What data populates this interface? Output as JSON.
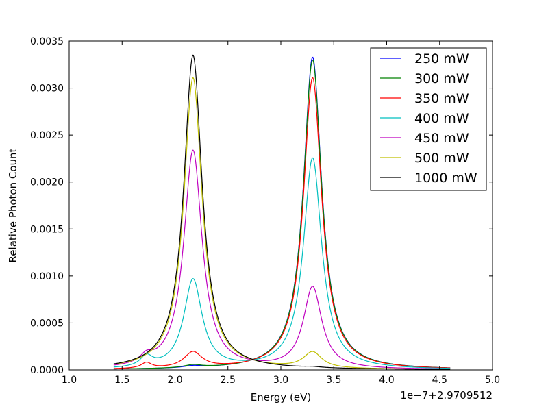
{
  "chart_data": {
    "type": "line",
    "title": "",
    "xlabel": "Energy (eV)",
    "ylabel": "Relative Photon Count",
    "x_offset_label": "1e−7+2.9709512",
    "xlim": [
      1.0,
      5.0
    ],
    "ylim": [
      0.0,
      0.0035
    ],
    "x_range_data": [
      1.42,
      4.6
    ],
    "xticks": [
      "1.0",
      "1.5",
      "2.0",
      "2.5",
      "3.0",
      "3.5",
      "4.0",
      "4.5",
      "5.0"
    ],
    "yticks": [
      "0.0000",
      "0.0005",
      "0.0010",
      "0.0015",
      "0.0020",
      "0.0025",
      "0.0030",
      "0.0035"
    ],
    "grid": false,
    "legend_position": "top-right",
    "peak_shape": "lorentzian",
    "series": [
      {
        "name": "250 mW",
        "color": "#0000ff",
        "peaks": [
          {
            "center": 3.3,
            "height": 0.00333,
            "hwhm": 0.105
          },
          {
            "center": 2.17,
            "height": 2e-05,
            "hwhm": 0.105
          }
        ]
      },
      {
        "name": "300 mW",
        "color": "#008000",
        "peaks": [
          {
            "center": 3.3,
            "height": 0.0033,
            "hwhm": 0.105
          },
          {
            "center": 2.17,
            "height": 3e-05,
            "hwhm": 0.105
          }
        ]
      },
      {
        "name": "350 mW",
        "color": "#ff0000",
        "peaks": [
          {
            "center": 3.3,
            "height": 0.00311,
            "hwhm": 0.105
          },
          {
            "center": 2.17,
            "height": 0.00017,
            "hwhm": 0.105
          },
          {
            "center": 1.73,
            "height": 6e-05,
            "hwhm": 0.06
          }
        ]
      },
      {
        "name": "400 mW",
        "color": "#00bfbf",
        "peaks": [
          {
            "center": 3.3,
            "height": 0.00225,
            "hwhm": 0.105
          },
          {
            "center": 2.17,
            "height": 0.00095,
            "hwhm": 0.105
          },
          {
            "center": 1.73,
            "height": 0.00011,
            "hwhm": 0.07
          }
        ]
      },
      {
        "name": "450 mW",
        "color": "#bf00bf",
        "peaks": [
          {
            "center": 3.3,
            "height": 0.00087,
            "hwhm": 0.105
          },
          {
            "center": 2.17,
            "height": 0.00233,
            "hwhm": 0.105
          },
          {
            "center": 1.73,
            "height": 8e-05,
            "hwhm": 0.07
          }
        ]
      },
      {
        "name": "500 mW",
        "color": "#bfbf00",
        "peaks": [
          {
            "center": 3.3,
            "height": 0.00017,
            "hwhm": 0.105
          },
          {
            "center": 2.17,
            "height": 0.00311,
            "hwhm": 0.105
          }
        ]
      },
      {
        "name": "1000 mW",
        "color": "#000000",
        "peaks": [
          {
            "center": 3.3,
            "height": 1e-05,
            "hwhm": 0.105
          },
          {
            "center": 2.17,
            "height": 0.00335,
            "hwhm": 0.105
          }
        ]
      }
    ]
  }
}
